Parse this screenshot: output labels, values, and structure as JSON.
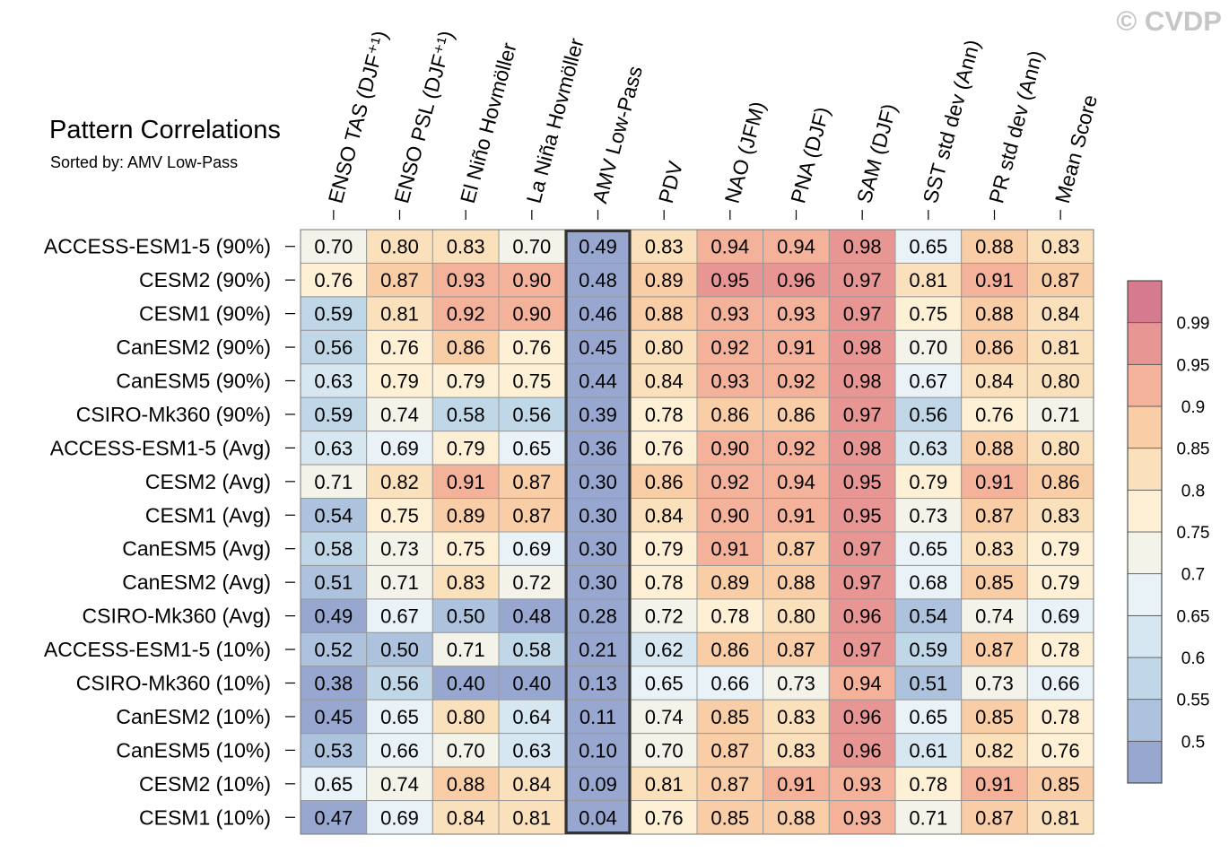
{
  "watermark": "© CVDP",
  "chart_data": {
    "type": "heatmap",
    "title": "Pattern Correlations",
    "subtitle": "Sorted by: AMV Low-Pass",
    "columns": [
      "ENSO TAS (DJF⁺¹)",
      "ENSO PSL (DJF⁺¹)",
      "El Niño Hovmöller",
      "La Niña Hovmöller",
      "AMV Low-Pass",
      "PDV",
      "NAO (JFM)",
      "PNA (DJF)",
      "SAM (DJF)",
      "SST std dev (Ann)",
      "PR std dev (Ann)",
      "Mean Score"
    ],
    "highlighted_column": "AMV Low-Pass",
    "rows": [
      "ACCESS-ESM1-5 (90%)",
      "CESM2 (90%)",
      "CESM1 (90%)",
      "CanESM2 (90%)",
      "CanESM5 (90%)",
      "CSIRO-Mk360 (90%)",
      "ACCESS-ESM1-5 (Avg)",
      "CESM2 (Avg)",
      "CESM1 (Avg)",
      "CanESM5 (Avg)",
      "CanESM2 (Avg)",
      "CSIRO-Mk360 (Avg)",
      "ACCESS-ESM1-5 (10%)",
      "CSIRO-Mk360 (10%)",
      "CanESM2 (10%)",
      "CanESM5 (10%)",
      "CESM2 (10%)",
      "CESM1 (10%)"
    ],
    "values": [
      [
        0.7,
        0.8,
        0.83,
        0.7,
        0.49,
        0.83,
        0.94,
        0.94,
        0.98,
        0.65,
        0.88,
        0.83
      ],
      [
        0.76,
        0.87,
        0.93,
        0.9,
        0.48,
        0.89,
        0.95,
        0.96,
        0.97,
        0.81,
        0.91,
        0.87
      ],
      [
        0.59,
        0.81,
        0.92,
        0.9,
        0.46,
        0.88,
        0.93,
        0.93,
        0.97,
        0.75,
        0.88,
        0.84
      ],
      [
        0.56,
        0.76,
        0.86,
        0.76,
        0.45,
        0.8,
        0.92,
        0.91,
        0.98,
        0.7,
        0.86,
        0.81
      ],
      [
        0.63,
        0.79,
        0.79,
        0.75,
        0.44,
        0.84,
        0.93,
        0.92,
        0.98,
        0.67,
        0.84,
        0.8
      ],
      [
        0.59,
        0.74,
        0.58,
        0.56,
        0.39,
        0.78,
        0.86,
        0.86,
        0.97,
        0.56,
        0.76,
        0.71
      ],
      [
        0.63,
        0.69,
        0.79,
        0.65,
        0.36,
        0.76,
        0.9,
        0.92,
        0.98,
        0.63,
        0.88,
        0.8
      ],
      [
        0.71,
        0.82,
        0.91,
        0.87,
        0.3,
        0.86,
        0.92,
        0.94,
        0.95,
        0.79,
        0.91,
        0.86
      ],
      [
        0.54,
        0.75,
        0.89,
        0.87,
        0.3,
        0.84,
        0.9,
        0.91,
        0.95,
        0.73,
        0.87,
        0.83
      ],
      [
        0.58,
        0.73,
        0.75,
        0.69,
        0.3,
        0.79,
        0.91,
        0.87,
        0.97,
        0.65,
        0.83,
        0.79
      ],
      [
        0.51,
        0.71,
        0.83,
        0.72,
        0.3,
        0.78,
        0.89,
        0.88,
        0.97,
        0.68,
        0.85,
        0.79
      ],
      [
        0.49,
        0.67,
        0.5,
        0.48,
        0.28,
        0.72,
        0.78,
        0.8,
        0.96,
        0.54,
        0.74,
        0.69
      ],
      [
        0.52,
        0.5,
        0.71,
        0.58,
        0.21,
        0.62,
        0.86,
        0.87,
        0.97,
        0.59,
        0.87,
        0.78
      ],
      [
        0.38,
        0.56,
        0.4,
        0.4,
        0.13,
        0.65,
        0.66,
        0.73,
        0.94,
        0.51,
        0.73,
        0.66
      ],
      [
        0.45,
        0.65,
        0.8,
        0.64,
        0.11,
        0.74,
        0.85,
        0.83,
        0.96,
        0.65,
        0.85,
        0.78
      ],
      [
        0.53,
        0.66,
        0.7,
        0.63,
        0.1,
        0.7,
        0.87,
        0.83,
        0.96,
        0.61,
        0.82,
        0.76
      ],
      [
        0.65,
        0.74,
        0.88,
        0.84,
        0.09,
        0.81,
        0.87,
        0.91,
        0.93,
        0.78,
        0.91,
        0.85
      ],
      [
        0.47,
        0.69,
        0.84,
        0.81,
        0.04,
        0.76,
        0.85,
        0.88,
        0.93,
        0.71,
        0.87,
        0.81
      ]
    ],
    "value_format": "0.00",
    "colorbar": {
      "levels": [
        0.5,
        0.55,
        0.6,
        0.65,
        0.7,
        0.75,
        0.8,
        0.85,
        0.9,
        0.95,
        0.99
      ],
      "labels": [
        "0.5",
        "0.55",
        "0.6",
        "0.65",
        "0.7",
        "0.75",
        "0.8",
        "0.85",
        "0.9",
        "0.95",
        "0.99"
      ],
      "colors": [
        "#97a7cf",
        "#acc2dd",
        "#c0d7e7",
        "#d6e7f1",
        "#e8f2f7",
        "#f3f3ea",
        "#fdf0d5",
        "#fbe1bb",
        "#f9cda6",
        "#f4b29a",
        "#e89694",
        "#d67a8f"
      ]
    }
  }
}
